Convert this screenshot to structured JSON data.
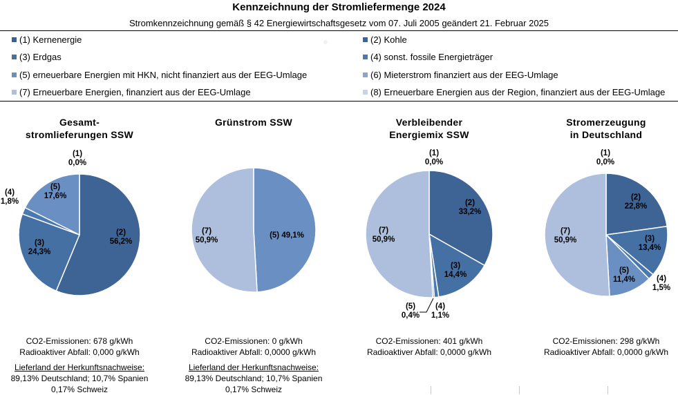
{
  "header": {
    "title": "Kennzeichnung der Stromliefermenge 2024",
    "subtitle": "Stromkennzeichnung gemäß § 42 Energiewirtschaftsgesetz vom 07. Juli 2005 geändert 21. Februar 2025"
  },
  "legend": [
    {
      "id": 1,
      "label": "(1) Kernenergie",
      "color": "#3b5f8f"
    },
    {
      "id": 2,
      "label": "(2) Kohle",
      "color": "#3d6494"
    },
    {
      "id": 3,
      "label": "(3) Erdgas",
      "color": "#4470a4"
    },
    {
      "id": 4,
      "label": "(4) sonst. fossile Energieträger",
      "color": "#4a78b0"
    },
    {
      "id": 5,
      "label": "(5) erneuerbare Energien mit HKN, nicht finanziert aus der EEG-Umlage",
      "color": "#6a8fc2"
    },
    {
      "id": 6,
      "label": "(6) Mieterstrom finanziert aus der EEG-Umlage",
      "color": "#8aa5cf"
    },
    {
      "id": 7,
      "label": "(7) Erneuerbare Energien, finanziert aus der EEG-Umlage",
      "color": "#adbfdc"
    },
    {
      "id": 8,
      "label": "(8) Erneuerbare Energien aus der Region, finanziert aus der EEG-Umlage",
      "color": "#c8d3e8"
    }
  ],
  "chart_data": [
    {
      "type": "pie",
      "title": "Gesamt-\nstromlieferungen SSW",
      "title_lines": [
        "Gesamt-",
        "stromlieferungen SSW"
      ],
      "slices": [
        {
          "category": "(1)",
          "value": 0.0,
          "label": "0,0%"
        },
        {
          "category": "(2)",
          "value": 56.2,
          "label": "56,2%"
        },
        {
          "category": "(3)",
          "value": 24.3,
          "label": "24,3%"
        },
        {
          "category": "(4)",
          "value": 1.8,
          "label": "1,8%"
        },
        {
          "category": "(5)",
          "value": 17.6,
          "label": "17,6%"
        }
      ],
      "info": {
        "co2": "CO2-Emissionen: 678 g/kWh",
        "waste": "Radioaktiver Abfall: 0,000 g/kWh",
        "origin_heading": "Lieferland der Herkunftsnachweise:",
        "origin_line1": "89,13% Deutschland; 10,7% Spanien",
        "origin_line2": "0,17% Schweiz"
      }
    },
    {
      "type": "pie",
      "title": "Grünstrom SSW",
      "title_lines": [
        "Grünstrom SSW"
      ],
      "slices": [
        {
          "category": "(5)",
          "value": 49.1,
          "label": "49,1%"
        },
        {
          "category": "(7)",
          "value": 50.9,
          "label": "50,9%"
        }
      ],
      "info": {
        "co2": "CO2-Emissionen: 0 g/kWh",
        "waste": "Radioaktiver Abfall: 0,0000 g/kWh",
        "origin_heading": "Lieferland der Herkunftsnachweise:",
        "origin_line1": "89,13% Deutschland; 10,7% Spanien",
        "origin_line2": "0,17% Schweiz"
      }
    },
    {
      "type": "pie",
      "title": "Verbleibender\nEnergiemix SSW",
      "title_lines": [
        "Verbleibender",
        "Energiemix SSW"
      ],
      "slices": [
        {
          "category": "(1)",
          "value": 0.0,
          "label": "0,0%"
        },
        {
          "category": "(2)",
          "value": 33.2,
          "label": "33,2%"
        },
        {
          "category": "(3)",
          "value": 14.4,
          "label": "14,4%"
        },
        {
          "category": "(4)",
          "value": 1.1,
          "label": "1,1%"
        },
        {
          "category": "(5)",
          "value": 0.4,
          "label": "0,4%"
        },
        {
          "category": "(7)",
          "value": 50.9,
          "label": "50,9%"
        }
      ],
      "info": {
        "co2": "CO2-Emissionen: 401 g/kWh",
        "waste": "Radioaktiver Abfall: 0,0000 g/kWh"
      }
    },
    {
      "type": "pie",
      "title": "Stromerzeugung\nin Deutschland",
      "title_lines": [
        "Stromerzeugung",
        "in Deutschland"
      ],
      "slices": [
        {
          "category": "(1)",
          "value": 0.0,
          "label": "0,0%"
        },
        {
          "category": "(2)",
          "value": 22.8,
          "label": "22,8%"
        },
        {
          "category": "(3)",
          "value": 13.4,
          "label": "13,4%"
        },
        {
          "category": "(4)",
          "value": 1.5,
          "label": "1,5%"
        },
        {
          "category": "(5)",
          "value": 11.4,
          "label": "11,4%"
        },
        {
          "category": "(7)",
          "value": 50.9,
          "label": "50,9%"
        }
      ],
      "info": {
        "co2": "CO2-Emissionen: 298 g/kWh",
        "waste": "Radioaktiver Abfall: 0,0000 g/kWh"
      }
    }
  ]
}
